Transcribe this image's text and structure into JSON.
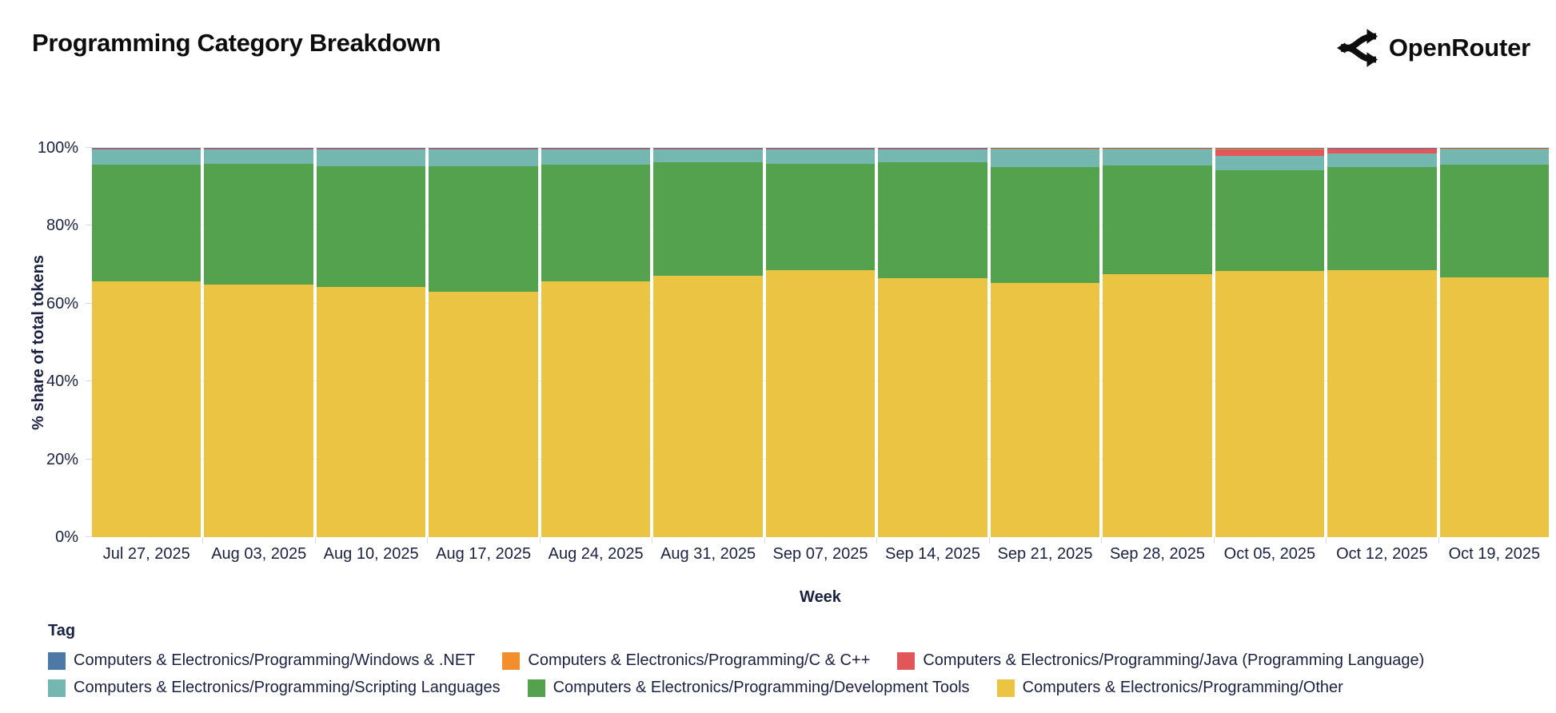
{
  "header": {
    "title": "Programming Category Breakdown",
    "brand": "OpenRouter"
  },
  "chart_data": {
    "type": "bar",
    "stacked": true,
    "normalized_percent": true,
    "title": "Programming Category Breakdown",
    "xlabel": "Week",
    "ylabel": "% share of total tokens",
    "ylim": [
      0,
      100
    ],
    "yticks": [
      0,
      20,
      40,
      60,
      80,
      100
    ],
    "ytick_suffix": "%",
    "grid": "horizontal-faint",
    "legend_position": "bottom",
    "categories": [
      "Jul 27, 2025",
      "Aug 03, 2025",
      "Aug 10, 2025",
      "Aug 17, 2025",
      "Aug 24, 2025",
      "Aug 31, 2025",
      "Sep 07, 2025",
      "Sep 14, 2025",
      "Sep 21, 2025",
      "Sep 28, 2025",
      "Oct 05, 2025",
      "Oct 12, 2025",
      "Oct 19, 2025"
    ],
    "stack_order_note": "series listed bottom-to-top of each bar; values are % share per week",
    "series": [
      {
        "name": "Computers & Electronics/Programming/Other",
        "color": "#ecc444",
        "values": [
          65.8,
          64.8,
          64.3,
          63.0,
          65.7,
          67.2,
          68.5,
          66.5,
          65.3,
          67.6,
          68.3,
          68.6,
          66.7
        ]
      },
      {
        "name": "Computers & Electronics/Programming/Development Tools",
        "color": "#55a24e",
        "values": [
          29.8,
          31.0,
          31.0,
          32.2,
          29.9,
          29.2,
          27.4,
          29.8,
          29.7,
          27.8,
          26.0,
          26.4,
          28.9
        ]
      },
      {
        "name": "Computers & Electronics/Programming/Scripting Languages",
        "color": "#74b6b0",
        "values": [
          4.0,
          3.8,
          4.3,
          4.4,
          4.0,
          3.2,
          3.7,
          3.3,
          4.5,
          4.1,
          3.7,
          3.6,
          3.9
        ]
      },
      {
        "name": "Computers & Electronics/Programming/Java (Programming Language)",
        "color": "#e15759",
        "values": [
          0.1,
          0.1,
          0.1,
          0.1,
          0.1,
          0.1,
          0.1,
          0.1,
          0.1,
          0.1,
          1.5,
          1.1,
          0.1
        ]
      },
      {
        "name": "Computers & Electronics/Programming/C & C++",
        "color": "#f28e2b",
        "values": [
          0.2,
          0.2,
          0.2,
          0.2,
          0.2,
          0.2,
          0.2,
          0.2,
          0.3,
          0.3,
          0.4,
          0.2,
          0.3
        ]
      },
      {
        "name": "Computers & Electronics/Programming/Windows & .NET",
        "color": "#4e79a7",
        "values": [
          0.1,
          0.1,
          0.1,
          0.1,
          0.1,
          0.1,
          0.1,
          0.1,
          0.1,
          0.1,
          0.1,
          0.1,
          0.1
        ]
      }
    ]
  },
  "legend": {
    "title": "Tag",
    "items": [
      {
        "label": "Computers & Electronics/Programming/Windows & .NET",
        "color": "#4e79a7"
      },
      {
        "label": "Computers & Electronics/Programming/C & C++",
        "color": "#f28e2b"
      },
      {
        "label": "Computers & Electronics/Programming/Java (Programming Language)",
        "color": "#e15759"
      },
      {
        "label": "Computers & Electronics/Programming/Scripting Languages",
        "color": "#74b6b0"
      },
      {
        "label": "Computers & Electronics/Programming/Development Tools",
        "color": "#55a24e"
      },
      {
        "label": "Computers & Electronics/Programming/Other",
        "color": "#ecc444"
      }
    ]
  }
}
